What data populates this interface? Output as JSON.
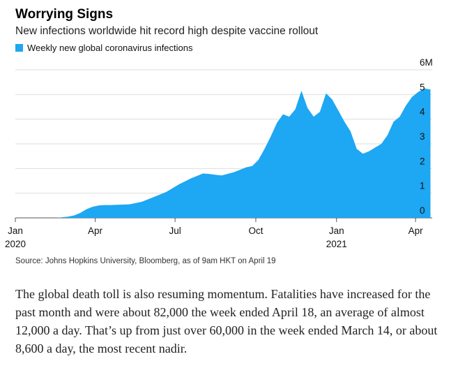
{
  "chart_data": {
    "type": "area",
    "title": "Worrying Signs",
    "subtitle": "New infections worldwide hit record high despite vaccine rollout",
    "legend": [
      {
        "name": "Weekly new global coronavirus infections",
        "color": "#1ea7f2"
      }
    ],
    "legend_position": "top-left",
    "ylim": [
      0,
      6
    ],
    "ytick_labels": [
      "6M",
      "5",
      "4",
      "3",
      "2",
      "1",
      "0"
    ],
    "y_axis_side": "right",
    "grid": true,
    "xlim": [
      "2020-01-01",
      "2021-04-20"
    ],
    "xticks": [
      {
        "date": "2020-01-01",
        "label": "Jan",
        "sublabel": "2020"
      },
      {
        "date": "2020-04-01",
        "label": "Apr",
        "sublabel": ""
      },
      {
        "date": "2020-07-01",
        "label": "Jul",
        "sublabel": ""
      },
      {
        "date": "2020-10-01",
        "label": "Oct",
        "sublabel": ""
      },
      {
        "date": "2021-01-01",
        "label": "Jan",
        "sublabel": "2021"
      },
      {
        "date": "2021-04-01",
        "label": "Apr",
        "sublabel": ""
      }
    ],
    "series": [
      {
        "name": "Weekly new global coronavirus infections",
        "color": "#1ea7f2",
        "x": [
          "2020-01-05",
          "2020-01-26",
          "2020-02-16",
          "2020-03-01",
          "2020-03-08",
          "2020-03-15",
          "2020-03-22",
          "2020-03-29",
          "2020-04-05",
          "2020-04-12",
          "2020-04-19",
          "2020-04-26",
          "2020-05-10",
          "2020-05-24",
          "2020-06-07",
          "2020-06-21",
          "2020-07-05",
          "2020-07-19",
          "2020-08-02",
          "2020-08-09",
          "2020-08-16",
          "2020-08-23",
          "2020-09-06",
          "2020-09-20",
          "2020-09-27",
          "2020-10-04",
          "2020-10-11",
          "2020-10-18",
          "2020-10-25",
          "2020-11-01",
          "2020-11-08",
          "2020-11-15",
          "2020-11-22",
          "2020-11-29",
          "2020-12-06",
          "2020-12-13",
          "2020-12-20",
          "2020-12-27",
          "2021-01-03",
          "2021-01-10",
          "2021-01-17",
          "2021-01-24",
          "2021-01-31",
          "2021-02-07",
          "2021-02-14",
          "2021-02-21",
          "2021-02-28",
          "2021-03-07",
          "2021-03-14",
          "2021-03-21",
          "2021-03-28",
          "2021-04-04",
          "2021-04-11",
          "2021-04-18"
        ],
        "values": [
          0,
          0,
          0,
          0.05,
          0.1,
          0.2,
          0.35,
          0.45,
          0.5,
          0.52,
          0.52,
          0.53,
          0.55,
          0.65,
          0.85,
          1.05,
          1.35,
          1.6,
          1.8,
          1.78,
          1.75,
          1.72,
          1.85,
          2.05,
          2.1,
          2.35,
          2.8,
          3.3,
          3.85,
          4.2,
          4.1,
          4.4,
          5.15,
          4.45,
          4.1,
          4.3,
          5.05,
          4.8,
          4.35,
          3.9,
          3.5,
          2.8,
          2.6,
          2.7,
          2.85,
          3.0,
          3.35,
          3.9,
          4.1,
          4.55,
          4.9,
          5.1,
          5.25,
          5.2
        ]
      }
    ]
  },
  "source": "Source: Johns Hopkins University, Bloomberg, as of 9am HKT on April 19",
  "body_text": "The global death toll is also resuming momentum. Fatalities have increased for the past month and were about 82,000 the week ended April 18, an average of almost 12,000 a day. That’s up from just over 60,000 in the week ended March 14, or about 8,600 a day, the most recent nadir."
}
